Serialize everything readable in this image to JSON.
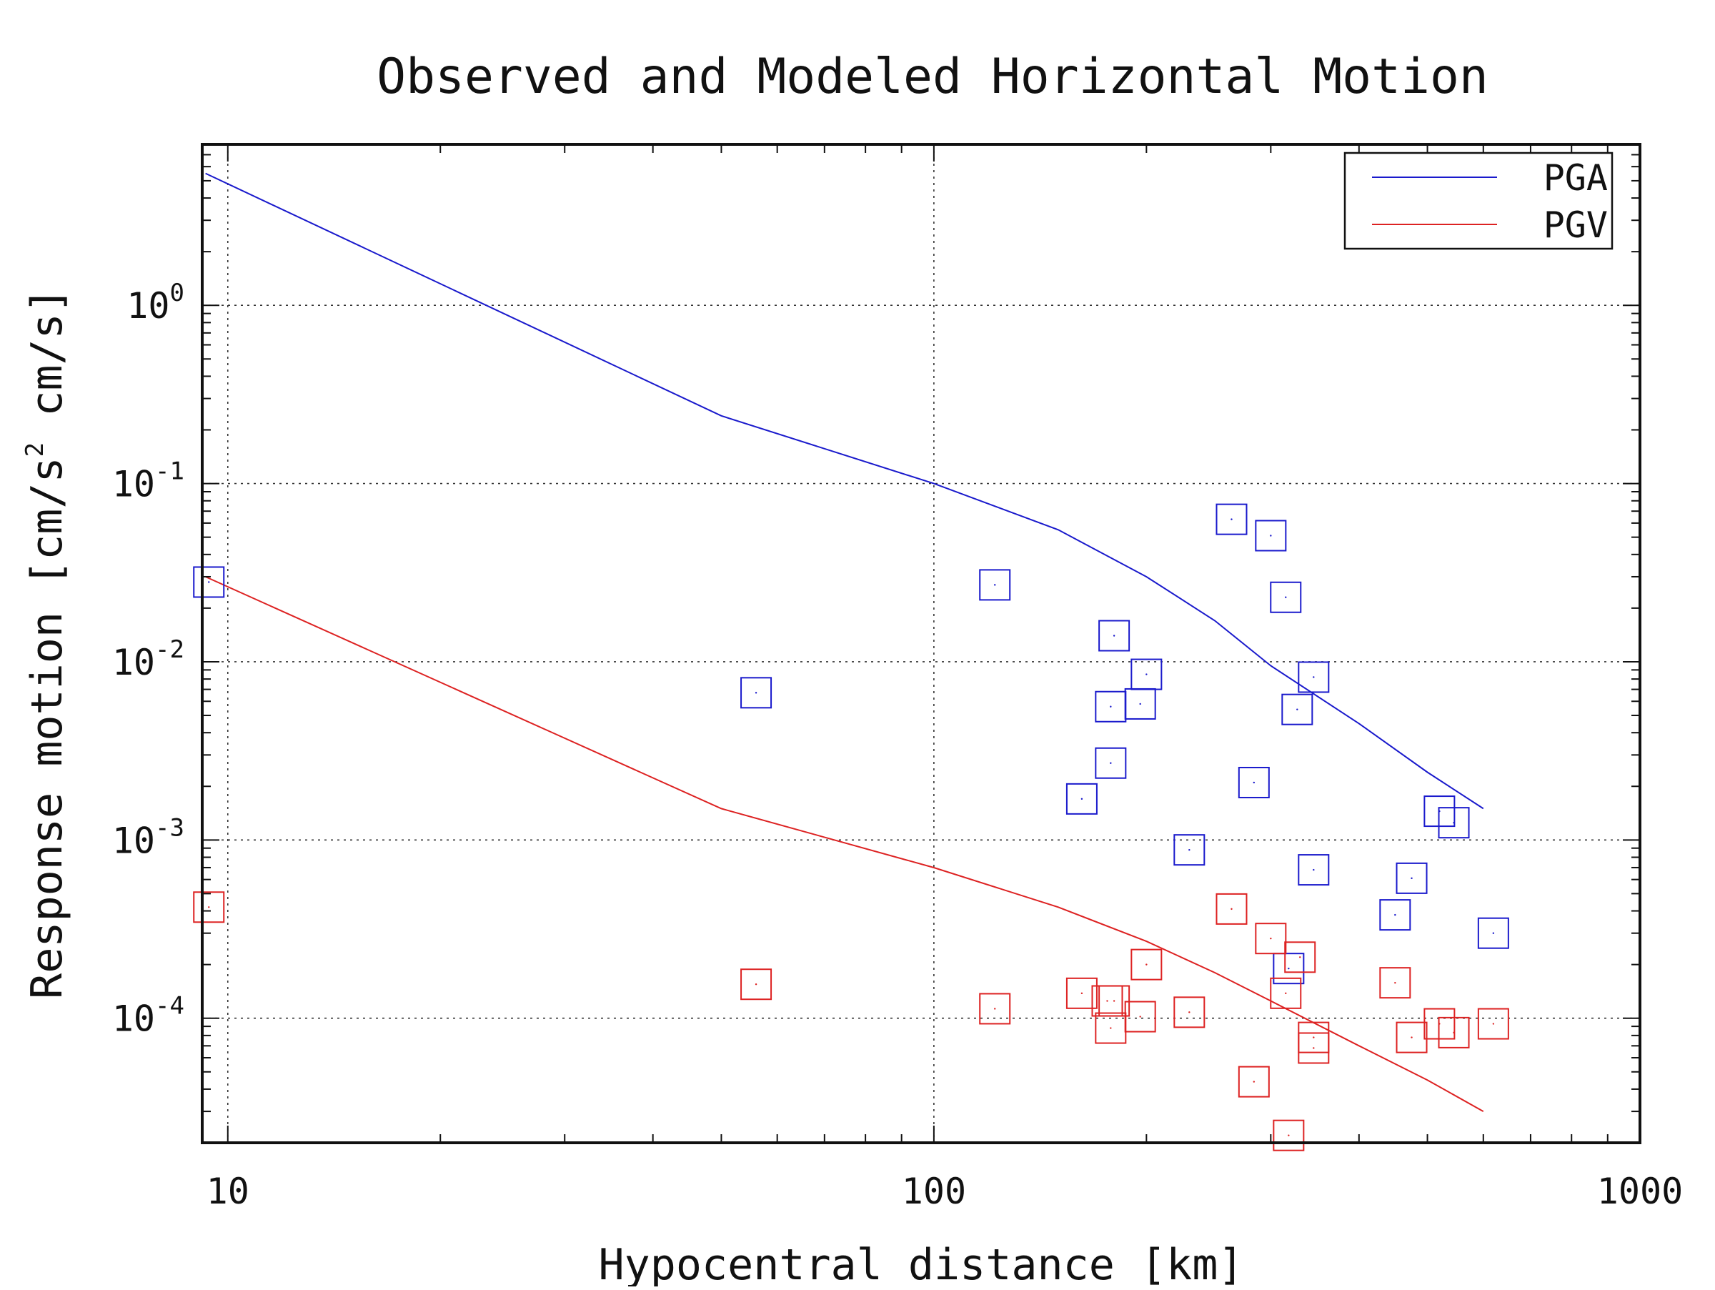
{
  "chart_data": {
    "type": "scatter",
    "title": "Observed and Modeled Horizontal Motion",
    "xlabel": "Hypocentral distance [km]",
    "ylabel": {
      "pre": "Response motion  [cm/s",
      "sup": "2",
      "post": "  cm/s]"
    },
    "x_scale": "log",
    "y_scale": "log",
    "xlim": [
      9.2,
      1000
    ],
    "ylim": [
      2e-05,
      8
    ],
    "grid": true,
    "legend_position": "top-right",
    "x_ticks": [
      {
        "value": 10,
        "label": "10"
      },
      {
        "value": 100,
        "label": "100"
      },
      {
        "value": 1000,
        "label": "1000"
      }
    ],
    "y_ticks": [
      {
        "value": 1,
        "base": "10",
        "exp": "0"
      },
      {
        "value": 0.1,
        "base": "10",
        "exp": "-1"
      },
      {
        "value": 0.01,
        "base": "10",
        "exp": "-2"
      },
      {
        "value": 0.001,
        "base": "10",
        "exp": "-3"
      },
      {
        "value": 0.0001,
        "base": "10",
        "exp": "-4"
      }
    ],
    "colors": {
      "PGA": "#1a1acc",
      "PGV": "#dd2222"
    },
    "model_curves": [
      {
        "name": "PGA",
        "color": "#1a1acc",
        "points": [
          [
            9.3,
            5.5
          ],
          [
            50,
            0.24
          ],
          [
            100,
            0.1
          ],
          [
            150,
            0.055
          ],
          [
            200,
            0.03
          ],
          [
            250,
            0.017
          ],
          [
            300,
            0.0095
          ],
          [
            400,
            0.0045
          ],
          [
            500,
            0.0024
          ],
          [
            600,
            0.0015
          ]
        ]
      },
      {
        "name": "PGV",
        "color": "#dd2222",
        "points": [
          [
            9.3,
            0.03
          ],
          [
            50,
            0.0015
          ],
          [
            100,
            0.0007
          ],
          [
            150,
            0.00042
          ],
          [
            200,
            0.00027
          ],
          [
            250,
            0.00018
          ],
          [
            300,
            0.000125
          ],
          [
            400,
            7e-05
          ],
          [
            500,
            4.5e-05
          ],
          [
            600,
            3e-05
          ]
        ]
      }
    ],
    "observations": [
      {
        "series": "PGA",
        "color": "#1a1acc",
        "points": [
          [
            9.4,
            0.028
          ],
          [
            56,
            0.0067
          ],
          [
            122,
            0.027
          ],
          [
            162,
            0.0017
          ],
          [
            178,
            0.0027
          ],
          [
            178,
            0.0056
          ],
          [
            180,
            0.014
          ],
          [
            196,
            0.0058
          ],
          [
            200,
            0.0085
          ],
          [
            230,
            0.00088
          ],
          [
            264,
            0.063
          ],
          [
            284,
            0.0021
          ],
          [
            300,
            0.051
          ],
          [
            315,
            0.023
          ],
          [
            327,
            0.0054
          ],
          [
            345,
            0.0082
          ],
          [
            345,
            0.00068
          ],
          [
            318,
            0.00019
          ],
          [
            450,
            0.00038
          ],
          [
            475,
            0.00061
          ],
          [
            520,
            0.00145
          ],
          [
            545,
            0.00125
          ],
          [
            620,
            0.0003
          ]
        ]
      },
      {
        "series": "PGV",
        "color": "#dd2222",
        "points": [
          [
            9.4,
            0.00042
          ],
          [
            56,
            0.000155
          ],
          [
            122,
            0.000113
          ],
          [
            162,
            0.000138
          ],
          [
            176,
            0.000125
          ],
          [
            178,
            8.8e-05
          ],
          [
            180,
            0.000125
          ],
          [
            196,
            0.000102
          ],
          [
            200,
            0.0002
          ],
          [
            230,
            0.000108
          ],
          [
            264,
            0.00041
          ],
          [
            284,
            4.4e-05
          ],
          [
            300,
            0.00028
          ],
          [
            315,
            0.000138
          ],
          [
            318,
            2.2e-05
          ],
          [
            330,
            0.00022
          ],
          [
            345,
            7.8e-05
          ],
          [
            345,
            6.8e-05
          ],
          [
            450,
            0.000158
          ],
          [
            475,
            7.8e-05
          ],
          [
            520,
            9.3e-05
          ],
          [
            545,
            8.3e-05
          ],
          [
            620,
            9.3e-05
          ]
        ]
      }
    ],
    "legend": [
      {
        "label": "PGA",
        "color": "#1a1acc"
      },
      {
        "label": "PGV",
        "color": "#dd2222"
      }
    ]
  }
}
